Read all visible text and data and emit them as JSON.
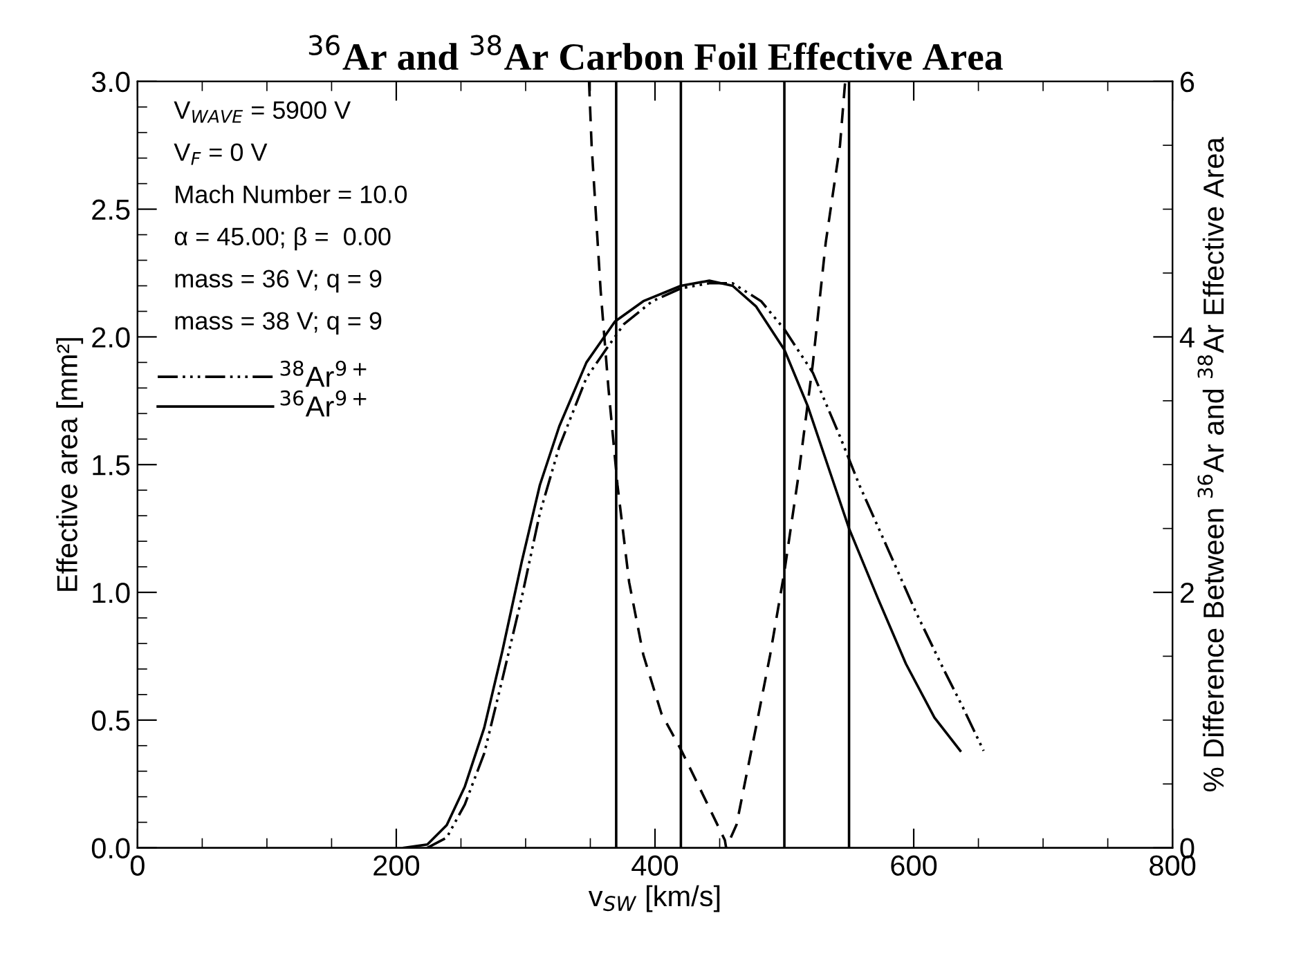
{
  "chart_data": {
    "type": "line",
    "title": "$^{36}$Ar and $^{38}$Ar Carbon Foil Effective Area",
    "xlabel": "v$_{SW}$ [km/s]",
    "ylabel": "Effective area [mm²]",
    "y2label": "% Difference Between $^{36}$Ar and $^{38}$Ar Effective Area",
    "annotations": [
      "V$_{WAVE}$ = 5900 V",
      "V$_{F}$ = 0 V",
      "Mach Number = 10.0",
      "α = 45.00; β =  0.00",
      "mass = 36 V; q = 9",
      "mass = 38 V; q = 9"
    ],
    "series": [
      {
        "name": "$^{38}$Ar$^{9+}$",
        "color": "#000000",
        "line_style": "dashdotdot",
        "x": [
          224,
          239,
          253,
          268,
          282,
          297,
          311,
          326,
          347,
          362,
          376,
          398,
          420,
          442,
          460,
          482,
          500,
          522,
          543,
          558,
          580,
          601,
          623,
          638,
          654
        ],
        "values": [
          0,
          0.04,
          0.17,
          0.37,
          0.66,
          0.98,
          1.31,
          1.57,
          1.84,
          1.95,
          2.05,
          2.14,
          2.19,
          2.21,
          2.21,
          2.14,
          2.03,
          1.86,
          1.61,
          1.42,
          1.17,
          0.93,
          0.7,
          0.55,
          0.38
        ]
      },
      {
        "name": "$^{36}$Ar$^{9+}$",
        "color": "#000000",
        "line_style": "solid",
        "x": [
          206,
          224,
          239,
          253,
          268,
          282,
          297,
          311,
          326,
          347,
          369,
          391,
          420,
          442,
          460,
          478,
          500,
          518,
          536,
          550,
          572,
          594,
          616,
          636
        ],
        "values": [
          0,
          0.013,
          0.089,
          0.24,
          0.47,
          0.77,
          1.12,
          1.42,
          1.65,
          1.9,
          2.06,
          2.14,
          2.2,
          2.22,
          2.2,
          2.12,
          1.95,
          1.73,
          1.46,
          1.25,
          0.98,
          0.72,
          0.51,
          0.38
        ]
      },
      {
        "color": "#000000",
        "line_style": "dashed",
        "axis": "y2",
        "x": [
          349,
          351,
          358,
          364,
          371,
          380,
          391,
          405,
          420,
          434,
          454,
          455,
          463,
          478,
          489,
          500,
          511,
          522,
          532,
          543,
          547
        ],
        "values": [
          6.0,
          5.5,
          4.36,
          3.6,
          2.84,
          2.08,
          1.51,
          1.05,
          0.77,
          0.48,
          0.06,
          0,
          0.18,
          0.94,
          1.51,
          2.16,
          2.92,
          3.79,
          4.74,
          5.5,
          6.0
        ]
      }
    ],
    "ref_lines": [
      {
        "axis": "x",
        "value": 370,
        "color": "#000000"
      },
      {
        "axis": "x",
        "value": 420,
        "color": "#000000"
      },
      {
        "axis": "x",
        "value": 500,
        "color": "#000000"
      },
      {
        "axis": "x",
        "value": 550,
        "color": "#000000"
      }
    ],
    "xlim": [
      0,
      800
    ],
    "xticks": [
      0,
      200,
      400,
      600,
      800
    ],
    "ylim": [
      0,
      3
    ],
    "yticks": [
      {
        "value": 0,
        "label": "0.0"
      },
      {
        "value": 0.5,
        "label": "0.5"
      },
      {
        "value": 1,
        "label": "1.0"
      },
      {
        "value": 1.5,
        "label": "1.5"
      },
      {
        "value": 2,
        "label": "2.0"
      },
      {
        "value": 2.5,
        "label": "2.5"
      },
      {
        "value": 3,
        "label": "3.0"
      }
    ],
    "y2lim": [
      0,
      6
    ],
    "y2ticks": [
      0,
      2,
      4,
      6
    ],
    "legend": "top left",
    "grid": false
  }
}
